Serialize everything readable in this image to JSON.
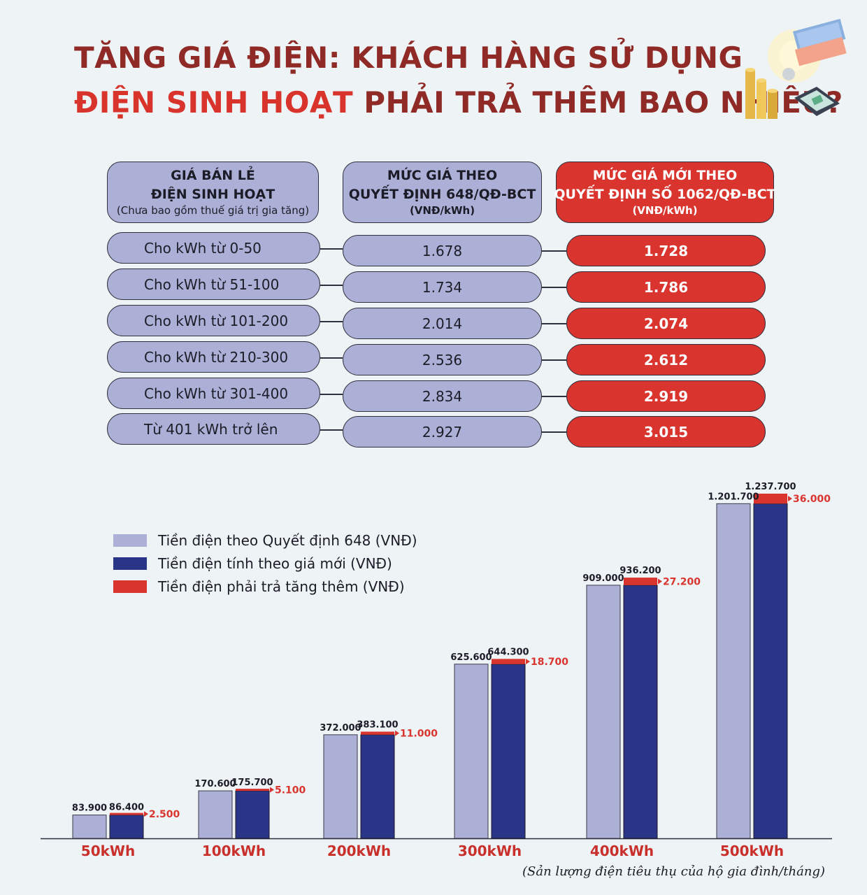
{
  "title": {
    "line1": "TĂNG GIÁ ĐIỆN: KHÁCH HÀNG SỬ DỤNG",
    "line2_red": "ĐIỆN SINH HOẠT",
    "line2_dark": " PHẢI TRẢ THÊM BAO NHIÊU?"
  },
  "table": {
    "headers": [
      {
        "line1": "GIÁ BÁN LẺ",
        "line2": "ĐIỆN SINH HOẠT",
        "line3": "(Chưa bao gồm thuế giá trị gia tăng)"
      },
      {
        "line1": "MỨC GIÁ THEO",
        "line2": "QUYẾT ĐỊNH 648/QĐ-BCT",
        "line3": "(VNĐ/kWh)"
      },
      {
        "line1": "MỨC GIÁ MỚI THEO",
        "line2": "QUYẾT ĐỊNH SỐ 1062/QĐ-BCT",
        "line3": "(VNĐ/kWh)"
      }
    ],
    "rows": [
      {
        "label": "Cho kWh từ 0-50",
        "old": "1.678",
        "new": "1.728"
      },
      {
        "label": "Cho kWh từ 51-100",
        "old": "1.734",
        "new": "1.786"
      },
      {
        "label": "Cho kWh từ 101-200",
        "old": "2.014",
        "new": "2.074"
      },
      {
        "label": "Cho kWh từ 210-300",
        "old": "2.536",
        "new": "2.612"
      },
      {
        "label": "Cho kWh từ 301-400",
        "old": "2.834",
        "new": "2.919"
      },
      {
        "label": "Từ 401 kWh trở lên",
        "old": "2.927",
        "new": "3.015"
      }
    ]
  },
  "legend": [
    {
      "label": "Tiền điện theo Quyết định 648 (VNĐ)",
      "color": "#adb0d6"
    },
    {
      "label": "Tiền điện tính theo giá mới (VNĐ)",
      "color": "#2b3588"
    },
    {
      "label": "Tiền điện phải trả tăng thêm (VNĐ)",
      "color": "#d9342e"
    }
  ],
  "chart_data": {
    "type": "bar",
    "categories": [
      "50kWh",
      "100kWh",
      "200kWh",
      "300kWh",
      "400kWh",
      "500kWh"
    ],
    "series": [
      {
        "name": "Tiền điện theo Quyết định 648 (VNĐ)",
        "values": [
          83900,
          170600,
          372000,
          625600,
          909000,
          1201700
        ],
        "labels": [
          "83.900",
          "170.600",
          "372.000",
          "625.600",
          "909.000",
          "1.201.700"
        ]
      },
      {
        "name": "Tiền điện tính theo giá mới (VNĐ)",
        "values": [
          86400,
          175700,
          383100,
          644300,
          936200,
          1237700
        ],
        "labels": [
          "86.400",
          "175.700",
          "383.100",
          "644.300",
          "936.200",
          "1.237.700"
        ]
      },
      {
        "name": "Tiền điện phải trả tăng thêm (VNĐ)",
        "values": [
          2500,
          5100,
          11000,
          18700,
          27200,
          36000
        ],
        "labels": [
          "2.500",
          "5.100",
          "11.000",
          "18.700",
          "27.200",
          "36.000"
        ]
      }
    ],
    "xlabel": "(Sản lượng điện tiêu thụ của hộ gia đình/tháng)",
    "ylim": [
      0,
      1237700
    ],
    "colors": {
      "old": "#adb0d6",
      "new": "#2b3588",
      "increase": "#d9342e",
      "category": "#c9302c"
    }
  }
}
